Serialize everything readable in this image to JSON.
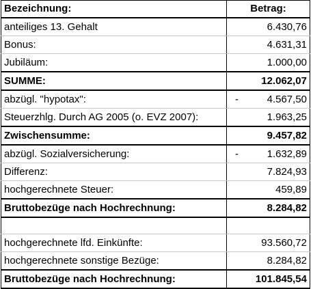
{
  "header": {
    "label": "Bezeichnung:",
    "amount": "Betrag:"
  },
  "rows": [
    {
      "label": "anteiliges 13. Gehalt",
      "sign": "",
      "amount": "6.430,76",
      "bold": false
    },
    {
      "label": "Bonus:",
      "sign": "",
      "amount": "4.631,31",
      "bold": false
    },
    {
      "label": "Jubiläum:",
      "sign": "",
      "amount": "1.000,00",
      "bold": false
    },
    {
      "label": "SUMME:",
      "sign": "",
      "amount": "12.062,07",
      "bold": true
    },
    {
      "label": "abzügl. \"hypotax\":",
      "sign": "-",
      "amount": "4.567,50",
      "bold": false
    },
    {
      "label": "Steuerzhlg. Durch AG 2005 (o. EVZ 2007):",
      "sign": "",
      "amount": "1.963,25",
      "bold": false
    },
    {
      "label": "Zwischensumme:",
      "sign": "",
      "amount": "9.457,82",
      "bold": true
    },
    {
      "label": "abzügl. Sozialversicherung:",
      "sign": "-",
      "amount": "1.632,89",
      "bold": false
    },
    {
      "label": "Differenz:",
      "sign": "",
      "amount": "7.824,93",
      "bold": false
    },
    {
      "label": "hochgerechnete Steuer:",
      "sign": "",
      "amount": "459,89",
      "bold": false
    },
    {
      "label": "Bruttobezüge nach Hochrechnung:",
      "sign": "",
      "amount": "8.284,82",
      "bold": true
    },
    {
      "label": "",
      "sign": "",
      "amount": "",
      "bold": false
    },
    {
      "label": "hochgerechnete lfd. Einkünfte:",
      "sign": "",
      "amount": "93.560,72",
      "bold": false
    },
    {
      "label": "hochgerechnete sonstige Bezüge:",
      "sign": "",
      "amount": "8.284,82",
      "bold": false
    },
    {
      "label": "Bruttobezüge nach Hochrechnung:",
      "sign": "",
      "amount": "101.845,54",
      "bold": true
    }
  ]
}
